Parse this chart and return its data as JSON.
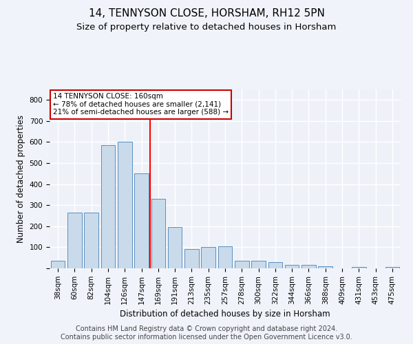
{
  "title": "14, TENNYSON CLOSE, HORSHAM, RH12 5PN",
  "subtitle": "Size of property relative to detached houses in Horsham",
  "xlabel": "Distribution of detached houses by size in Horsham",
  "ylabel": "Number of detached properties",
  "categories": [
    "38sqm",
    "60sqm",
    "82sqm",
    "104sqm",
    "126sqm",
    "147sqm",
    "169sqm",
    "191sqm",
    "213sqm",
    "235sqm",
    "257sqm",
    "278sqm",
    "300sqm",
    "322sqm",
    "344sqm",
    "366sqm",
    "388sqm",
    "409sqm",
    "431sqm",
    "453sqm",
    "475sqm"
  ],
  "values": [
    35,
    265,
    265,
    585,
    600,
    450,
    330,
    195,
    90,
    100,
    105,
    35,
    35,
    30,
    17,
    16,
    10,
    0,
    5,
    0,
    7
  ],
  "bar_color": "#c9daea",
  "bar_edge_color": "#5a8fbf",
  "vline_pos": 5.5,
  "annotation_text": "14 TENNYSON CLOSE: 160sqm\n← 78% of detached houses are smaller (2,141)\n21% of semi-detached houses are larger (588) →",
  "annotation_box_facecolor": "#ffffff",
  "annotation_box_edgecolor": "#cc0000",
  "footer_text": "Contains HM Land Registry data © Crown copyright and database right 2024.\nContains public sector information licensed under the Open Government Licence v3.0.",
  "ylim": [
    0,
    850
  ],
  "fig_facecolor": "#f0f4fa",
  "ax_facecolor": "#eef2f8",
  "grid_color": "#ffffff",
  "title_fontsize": 11,
  "subtitle_fontsize": 9.5,
  "ylabel_fontsize": 8.5,
  "xlabel_fontsize": 8.5,
  "tick_fontsize": 7.5,
  "annotation_fontsize": 7.5,
  "footer_fontsize": 7
}
